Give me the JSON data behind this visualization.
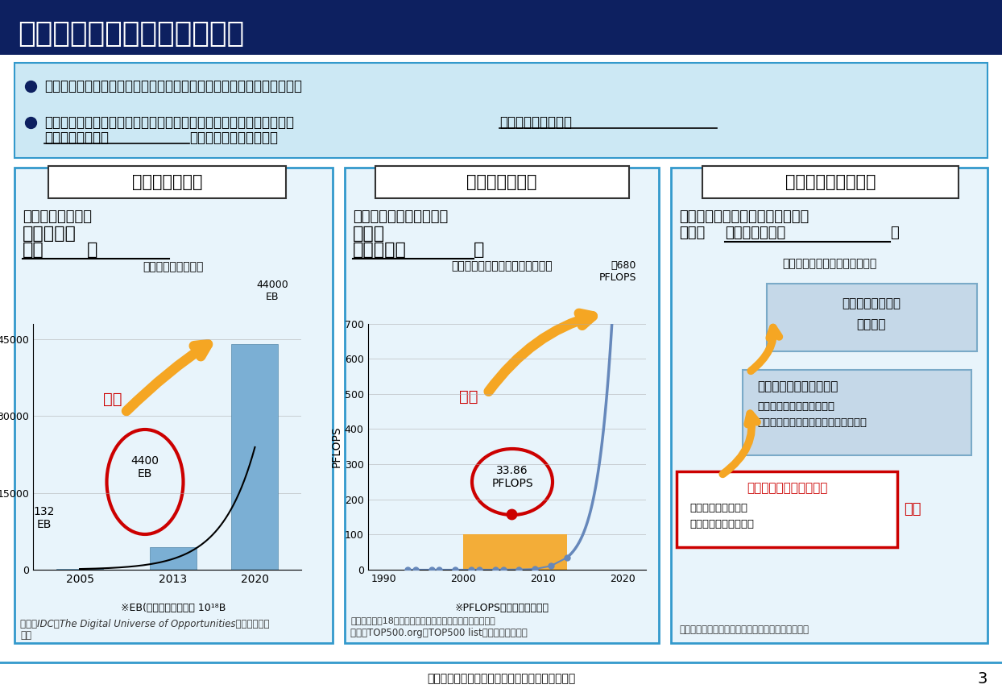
{
  "title": "１．データを巡る技術の動向",
  "title_bg": "#0d2060",
  "title_color": "#ffffff",
  "bullet_bg": "#cce8f4",
  "bullet1": "データ量の増加、処理性能の向上、ＡＩの非連続的進化が急速に進展。",
  "panel_border": "#3399cc",
  "panel_bg": "#e8f4fb",
  "panel1_title": "データ量の増加",
  "panel2_title": "処理性能の向上",
  "panel3_title": "ＡＩの非連続的進化",
  "panel1_caption": "＜世界のデータ量＞",
  "panel1_note": "※EB(エクサバイト）＝ 10¹⁸B",
  "panel1_source": "出所：IDC「The Digital Universe of Opportunities」より経産省\n作成",
  "panel2_caption": "＜最先端のスパコンの演算速度＞",
  "panel2_note1": "※PFLOPS＝演算速度の指標",
  "panel2_note2": "将来予測は、18か月ごとに性能が倍になるものとして算出",
  "panel2_source": "出所：TOP500.org「TOP500 list」より経産省作成",
  "panel3_caption": "＜ＡＩの技術的発展の見通し＞",
  "panel3_source": "出所：東京大学・松尾准教授資料を基に経産省作成",
  "footer": "出典：産業構造審議会新産業構造部会（第１回）",
  "page_num": "3",
  "bar_color": "#7bafd4",
  "orange_color": "#f5a623",
  "red_color": "#cc0000",
  "ai_dim3_color": "#c5d8e8",
  "ai_dim2_color": "#c5d8e8",
  "ai_dim1_color": "#ffffff",
  "genzyo_color": "#cc0000"
}
